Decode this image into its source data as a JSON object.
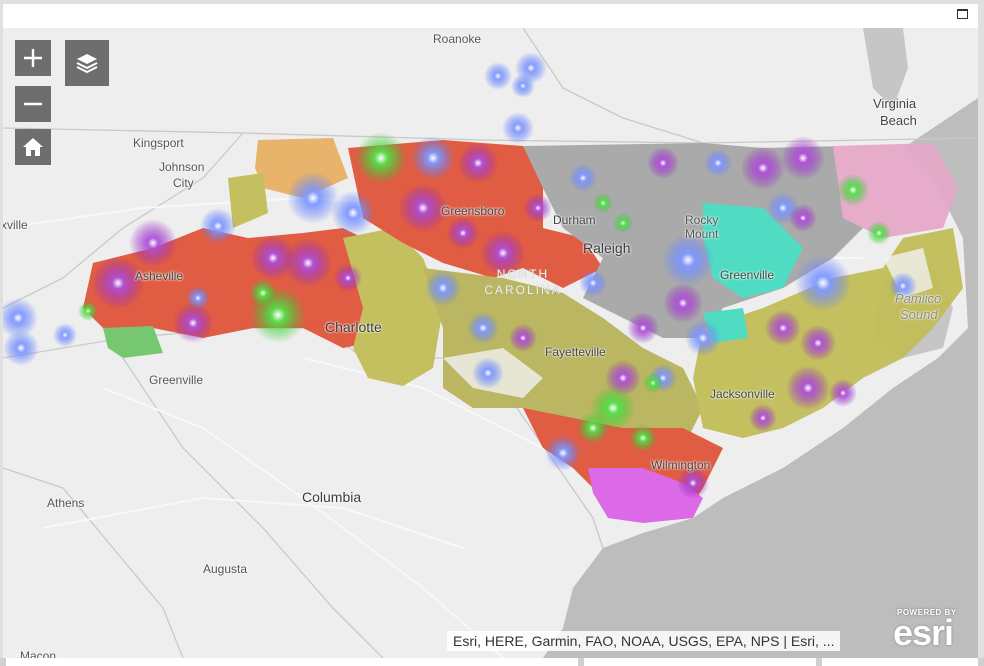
{
  "window": {
    "maximize_label": ""
  },
  "controls": {
    "zoom_in": "+",
    "zoom_out": "−",
    "home_icon": "home-icon",
    "layers_icon": "layers-icon"
  },
  "cities": {
    "roanoke": "Roanoke",
    "virginia_beach_1": "Virginia",
    "virginia_beach_2": "Beach",
    "kingsport": "Kingsport",
    "johnson_city_1": "Johnson",
    "johnson_city_2": "City",
    "knoxville": "xville",
    "greensboro": "Greensboro",
    "durham": "Durham",
    "raleigh": "Raleigh",
    "rocky_mount_1": "Rocky",
    "rocky_mount_2": "Mount",
    "greenville_nc": "Greenville",
    "asheville": "Asheville",
    "charlotte": "Charlotte",
    "fayetteville": "Fayetteville",
    "jacksonville": "Jacksonville",
    "greenville_sc": "Greenville",
    "wilmington": "Wilmington",
    "columbia": "Columbia",
    "athens": "Athens",
    "augusta": "Augusta",
    "macon": "Macon"
  },
  "water": {
    "pamlico_1": "Pamlico",
    "pamlico_2": "Sound"
  },
  "state_label": {
    "line1": "NORTH",
    "line2": "CAROLINA"
  },
  "attribution": "Esri, HERE, Garmin, FAO, NOAA, USGS, EPA, NPS | Esri, ...",
  "esri_logo": {
    "powered_by": "POWERED BY",
    "brand": "esri"
  },
  "colors": {
    "land": "#eeeeee",
    "ocean": "#bdbdbd",
    "red_region": "#e0553a",
    "olive_region": "#c2bd58",
    "gray_region": "#a7a7a7",
    "orange_region": "#e8b064",
    "teal_region": "#48dcc0",
    "pink_region": "#e6a9c9",
    "magenta_region": "#dc62e6",
    "cluster_blue": "#5b7bff",
    "cluster_purple": "#9b2fc9",
    "cluster_green": "#3fd23a"
  }
}
